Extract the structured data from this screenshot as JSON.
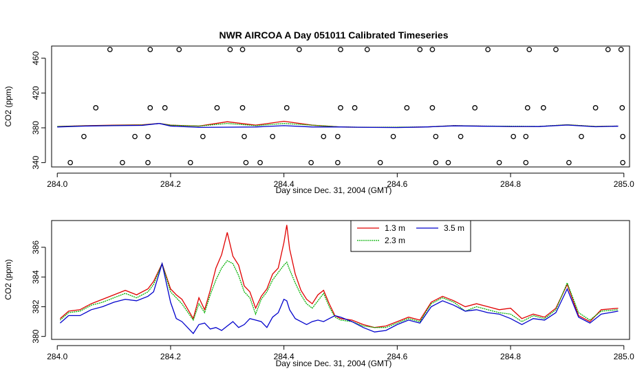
{
  "chart_data": [
    {
      "type": "scatter",
      "title": "NWR AIRCOA A  Day 051011  Calibrated Timeseries",
      "xlabel": "Day since Dec. 31, 2004 (GMT)",
      "ylabel": "CO2 (ppm)",
      "xlim": [
        283.99,
        285.01
      ],
      "ylim": [
        335,
        474
      ],
      "xticks": [
        284.0,
        284.2,
        284.4,
        284.6,
        284.8,
        285.0
      ],
      "xtick_labels": [
        "284.0",
        "284.2",
        "284.4",
        "284.6",
        "284.8",
        "285.0"
      ],
      "yticks": [
        340,
        380,
        420,
        460
      ],
      "ytick_labels": [
        "340",
        "380",
        "420",
        "460"
      ],
      "colors": {
        "1.3 m": "#e00000",
        "2.3 m": "#00b000",
        "3.5 m": "#0000cc",
        "points": "#000000"
      },
      "calibration_points": [
        {
          "x": 284.093,
          "y": 470
        },
        {
          "x": 284.164,
          "y": 470
        },
        {
          "x": 284.215,
          "y": 470
        },
        {
          "x": 284.305,
          "y": 470
        },
        {
          "x": 284.327,
          "y": 470
        },
        {
          "x": 284.427,
          "y": 470
        },
        {
          "x": 284.5,
          "y": 470
        },
        {
          "x": 284.547,
          "y": 470
        },
        {
          "x": 284.64,
          "y": 470
        },
        {
          "x": 284.662,
          "y": 470
        },
        {
          "x": 284.76,
          "y": 470
        },
        {
          "x": 284.833,
          "y": 470
        },
        {
          "x": 284.88,
          "y": 470
        },
        {
          "x": 284.972,
          "y": 470
        },
        {
          "x": 284.995,
          "y": 470
        },
        {
          "x": 284.068,
          "y": 403
        },
        {
          "x": 284.164,
          "y": 403
        },
        {
          "x": 284.19,
          "y": 403
        },
        {
          "x": 284.282,
          "y": 403
        },
        {
          "x": 284.327,
          "y": 403
        },
        {
          "x": 284.405,
          "y": 403
        },
        {
          "x": 284.5,
          "y": 403
        },
        {
          "x": 284.525,
          "y": 403
        },
        {
          "x": 284.617,
          "y": 403
        },
        {
          "x": 284.662,
          "y": 403
        },
        {
          "x": 284.737,
          "y": 403
        },
        {
          "x": 284.83,
          "y": 403
        },
        {
          "x": 284.858,
          "y": 403
        },
        {
          "x": 284.95,
          "y": 403
        },
        {
          "x": 284.997,
          "y": 403
        },
        {
          "x": 284.047,
          "y": 370
        },
        {
          "x": 284.137,
          "y": 370
        },
        {
          "x": 284.16,
          "y": 370
        },
        {
          "x": 284.257,
          "y": 370
        },
        {
          "x": 284.33,
          "y": 370
        },
        {
          "x": 284.38,
          "y": 370
        },
        {
          "x": 284.47,
          "y": 370
        },
        {
          "x": 284.495,
          "y": 370
        },
        {
          "x": 284.593,
          "y": 370
        },
        {
          "x": 284.668,
          "y": 370
        },
        {
          "x": 284.712,
          "y": 370
        },
        {
          "x": 284.805,
          "y": 370
        },
        {
          "x": 284.827,
          "y": 370
        },
        {
          "x": 284.925,
          "y": 370
        },
        {
          "x": 284.998,
          "y": 370
        },
        {
          "x": 284.023,
          "y": 340
        },
        {
          "x": 284.115,
          "y": 340
        },
        {
          "x": 284.16,
          "y": 340
        },
        {
          "x": 284.235,
          "y": 340
        },
        {
          "x": 284.333,
          "y": 340
        },
        {
          "x": 284.358,
          "y": 340
        },
        {
          "x": 284.448,
          "y": 340
        },
        {
          "x": 284.495,
          "y": 340
        },
        {
          "x": 284.57,
          "y": 340
        },
        {
          "x": 284.668,
          "y": 340
        },
        {
          "x": 284.69,
          "y": 340
        },
        {
          "x": 284.78,
          "y": 340
        },
        {
          "x": 284.827,
          "y": 340
        },
        {
          "x": 284.903,
          "y": 340
        },
        {
          "x": 284.998,
          "y": 340
        }
      ],
      "series": [
        {
          "name": "1.3 m",
          "x": [
            284.0,
            284.05,
            284.1,
            284.15,
            284.18,
            284.2,
            284.25,
            284.3,
            284.35,
            284.4,
            284.45,
            284.5,
            284.55,
            284.6,
            284.65,
            284.7,
            284.75,
            284.8,
            284.85,
            284.9,
            284.95,
            284.99
          ],
          "values": [
            381.5,
            382.5,
            383,
            383.5,
            385,
            383,
            382,
            387,
            383,
            387.5,
            383,
            381,
            380.5,
            380.5,
            381,
            382.5,
            382,
            381.5,
            381.5,
            383.5,
            381.5,
            382
          ]
        },
        {
          "name": "2.3 m",
          "x": [
            284.0,
            284.05,
            284.1,
            284.15,
            284.18,
            284.2,
            284.25,
            284.3,
            284.35,
            284.4,
            284.45,
            284.5,
            284.55,
            284.6,
            284.65,
            284.7,
            284.75,
            284.8,
            284.85,
            284.9,
            284.95,
            284.99
          ],
          "values": [
            381.5,
            382.2,
            382.8,
            383.2,
            385,
            383,
            382,
            385,
            382.5,
            385,
            383,
            381,
            380.6,
            380.7,
            381,
            382.5,
            382,
            381.8,
            381.6,
            383.5,
            381.5,
            382
          ]
        },
        {
          "name": "3.5 m",
          "x": [
            284.0,
            284.05,
            284.1,
            284.15,
            284.18,
            284.2,
            284.25,
            284.3,
            284.35,
            284.4,
            284.45,
            284.5,
            284.55,
            284.6,
            284.65,
            284.7,
            284.75,
            284.8,
            284.85,
            284.9,
            284.95,
            284.99
          ],
          "values": [
            381,
            382,
            382.5,
            382.8,
            385,
            382,
            380.5,
            380.7,
            381,
            382.5,
            381,
            381,
            380.5,
            380.3,
            381,
            382.2,
            381.8,
            381.5,
            381.4,
            383.2,
            381.2,
            381.8
          ]
        }
      ]
    },
    {
      "type": "line",
      "title": "",
      "xlabel": "Day since Dec. 31, 2004 (GMT)",
      "ylabel": "CO2 (ppm)",
      "xlim": [
        283.99,
        285.01
      ],
      "ylim": [
        379.8,
        387.8
      ],
      "xticks": [
        284.0,
        284.2,
        284.4,
        284.6,
        284.8,
        285.0
      ],
      "xtick_labels": [
        "284.0",
        "284.2",
        "284.4",
        "284.6",
        "284.8",
        "285.0"
      ],
      "yticks": [
        380,
        382,
        384,
        386
      ],
      "ytick_labels": [
        "380",
        "382",
        "384",
        "386"
      ],
      "legend": {
        "position": "top-center",
        "entries": [
          "1.3 m",
          "3.5 m",
          "2.3 m"
        ]
      },
      "colors": {
        "1.3 m": "#e00000",
        "2.3 m": "#00b000",
        "3.5 m": "#0000cc"
      },
      "series": [
        {
          "name": "1.3 m",
          "x": [
            284.005,
            284.02,
            284.04,
            284.06,
            284.08,
            284.1,
            284.12,
            284.14,
            284.16,
            284.17,
            284.185,
            284.2,
            284.21,
            284.22,
            284.24,
            284.25,
            284.26,
            284.27,
            284.28,
            284.29,
            284.3,
            284.31,
            284.32,
            284.33,
            284.34,
            284.35,
            284.36,
            284.37,
            284.38,
            284.39,
            284.4,
            284.405,
            284.41,
            284.42,
            284.43,
            284.44,
            284.45,
            284.46,
            284.47,
            284.48,
            284.49,
            284.5,
            284.52,
            284.54,
            284.56,
            284.58,
            284.6,
            284.62,
            284.64,
            284.66,
            284.68,
            284.7,
            284.72,
            284.74,
            284.76,
            284.78,
            284.8,
            284.82,
            284.84,
            284.86,
            284.88,
            284.9,
            284.92,
            284.94,
            284.96,
            284.99
          ],
          "values": [
            381.2,
            381.7,
            381.8,
            382.2,
            382.5,
            382.8,
            383.1,
            382.8,
            383.2,
            383.7,
            384.9,
            383.2,
            382.8,
            382.5,
            381.2,
            382.6,
            381.8,
            383.1,
            384.6,
            385.5,
            387.0,
            385.4,
            384.8,
            383.4,
            383.0,
            381.9,
            382.7,
            383.2,
            384.2,
            384.6,
            386.3,
            387.5,
            385.9,
            384.2,
            383.1,
            382.5,
            382.2,
            382.8,
            383.1,
            382.2,
            381.4,
            381.2,
            381.1,
            380.8,
            380.6,
            380.7,
            381.0,
            381.3,
            381.1,
            382.3,
            382.7,
            382.4,
            382.0,
            382.2,
            382.0,
            381.8,
            381.9,
            381.2,
            381.5,
            381.3,
            381.9,
            383.5,
            381.4,
            381.0,
            381.8,
            381.9
          ]
        },
        {
          "name": "2.3 m",
          "x": [
            284.005,
            284.02,
            284.04,
            284.06,
            284.08,
            284.1,
            284.12,
            284.14,
            284.16,
            284.17,
            284.185,
            284.2,
            284.21,
            284.22,
            284.24,
            284.25,
            284.26,
            284.27,
            284.28,
            284.29,
            284.3,
            284.31,
            284.32,
            284.33,
            284.34,
            284.35,
            284.36,
            284.37,
            284.38,
            284.39,
            284.4,
            284.405,
            284.41,
            284.42,
            284.43,
            284.44,
            284.45,
            284.46,
            284.47,
            284.48,
            284.49,
            284.5,
            284.52,
            284.54,
            284.56,
            284.58,
            284.6,
            284.62,
            284.64,
            284.66,
            284.68,
            284.7,
            284.72,
            284.74,
            284.76,
            284.78,
            284.8,
            284.82,
            284.84,
            284.86,
            284.88,
            284.9,
            284.92,
            284.94,
            284.96,
            284.99
          ],
          "values": [
            381.1,
            381.6,
            381.7,
            382.1,
            382.3,
            382.6,
            382.9,
            382.6,
            383.0,
            383.5,
            384.9,
            383.0,
            382.6,
            382.2,
            381.1,
            382.2,
            381.6,
            382.8,
            383.8,
            384.6,
            385.1,
            384.9,
            384.1,
            383.0,
            382.6,
            381.5,
            382.5,
            383.0,
            383.8,
            384.3,
            384.8,
            385.0,
            384.5,
            383.6,
            382.8,
            382.2,
            381.9,
            382.4,
            382.9,
            382.0,
            381.3,
            381.1,
            381.0,
            380.7,
            380.6,
            380.6,
            380.9,
            381.2,
            381.0,
            382.2,
            382.6,
            382.3,
            381.7,
            382.0,
            381.8,
            381.6,
            381.5,
            381.0,
            381.4,
            381.2,
            381.8,
            383.6,
            381.6,
            381.1,
            381.7,
            381.8
          ]
        },
        {
          "name": "3.5 m",
          "x": [
            284.005,
            284.02,
            284.04,
            284.06,
            284.08,
            284.1,
            284.12,
            284.14,
            284.16,
            284.17,
            284.185,
            284.2,
            284.21,
            284.22,
            284.24,
            284.25,
            284.26,
            284.27,
            284.28,
            284.29,
            284.3,
            284.31,
            284.32,
            284.33,
            284.34,
            284.35,
            284.36,
            284.37,
            284.38,
            284.39,
            284.4,
            284.405,
            284.41,
            284.42,
            284.43,
            284.44,
            284.45,
            284.46,
            284.47,
            284.48,
            284.49,
            284.5,
            284.52,
            284.54,
            284.56,
            284.58,
            284.6,
            284.62,
            284.64,
            284.66,
            284.68,
            284.7,
            284.72,
            284.74,
            284.76,
            284.78,
            284.8,
            284.82,
            284.84,
            284.86,
            284.88,
            284.9,
            284.92,
            284.94,
            284.96,
            284.99
          ],
          "values": [
            380.9,
            381.4,
            381.4,
            381.8,
            382.0,
            382.3,
            382.5,
            382.4,
            382.7,
            383.0,
            384.9,
            382.3,
            381.2,
            381.0,
            380.2,
            380.8,
            380.9,
            380.5,
            380.6,
            380.4,
            380.7,
            381.0,
            380.6,
            380.8,
            381.2,
            381.1,
            381.0,
            380.6,
            381.3,
            381.6,
            382.5,
            382.4,
            381.8,
            381.2,
            381.0,
            380.8,
            381.0,
            381.1,
            381.0,
            381.2,
            381.4,
            381.3,
            381.0,
            380.6,
            380.3,
            380.4,
            380.8,
            381.1,
            380.9,
            382.0,
            382.4,
            382.1,
            381.7,
            381.8,
            381.6,
            381.5,
            381.2,
            380.8,
            381.2,
            381.1,
            381.6,
            383.2,
            381.3,
            380.9,
            381.5,
            381.7
          ]
        }
      ]
    }
  ]
}
